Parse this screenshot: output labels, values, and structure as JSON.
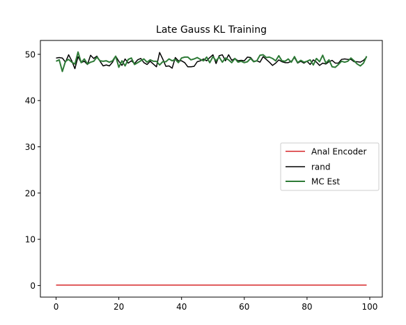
{
  "chart_data": {
    "type": "line",
    "title": "Late Gauss KL Training",
    "xlabel": "",
    "ylabel": "",
    "xlim": [
      -5,
      104
    ],
    "ylim": [
      -2.5,
      53
    ],
    "xticks": [
      0,
      20,
      40,
      60,
      80,
      100
    ],
    "yticks": [
      0,
      10,
      20,
      30,
      40,
      50
    ],
    "grid": false,
    "legend": "center-right",
    "series": [
      {
        "name": "Anal Encoder",
        "color": "#d62728",
        "x": [
          0,
          10,
          20,
          30,
          40,
          50,
          60,
          70,
          80,
          90,
          99
        ],
        "y": [
          0.1,
          0.1,
          0.1,
          0.1,
          0.1,
          0.1,
          0.1,
          0.1,
          0.1,
          0.1,
          0.1
        ]
      },
      {
        "name": "rand",
        "color": "#000000",
        "x": [
          0,
          1,
          2,
          3,
          4,
          5,
          6,
          7,
          8,
          9,
          10,
          11,
          12,
          13,
          14,
          15,
          16,
          17,
          18,
          19,
          20,
          21,
          22,
          23,
          24,
          25,
          26,
          27,
          28,
          29,
          30,
          31,
          32,
          33,
          34,
          35,
          36,
          37,
          38,
          39,
          40,
          41,
          42,
          43,
          44,
          45,
          46,
          47,
          48,
          49,
          50,
          51,
          52,
          53,
          54,
          55,
          56,
          57,
          58,
          59,
          60,
          61,
          62,
          63,
          64,
          65,
          66,
          67,
          68,
          69,
          70,
          71,
          72,
          73,
          74,
          75,
          76,
          77,
          78,
          79,
          80,
          81,
          82,
          83,
          84,
          85,
          86,
          87,
          88,
          89,
          90,
          91,
          92,
          93,
          94,
          95,
          96,
          97,
          98,
          99
        ],
        "y": [
          49.2,
          49.3,
          49.2,
          48.3,
          49.9,
          48.6,
          46.9,
          49.5,
          48.2,
          48.5,
          47.8,
          49.8,
          49.1,
          49.6,
          48.5,
          47.5,
          47.7,
          47.5,
          48.3,
          49.6,
          48.5,
          47.6,
          49.0,
          48.1,
          48.6,
          48.0,
          48.8,
          49.1,
          48.2,
          47.8,
          48.5,
          47.9,
          47.3,
          50.4,
          49.0,
          47.4,
          47.5,
          47.0,
          49.3,
          48.6,
          48.6,
          48.2,
          47.3,
          47.3,
          47.4,
          48.4,
          48.6,
          49.0,
          48.6,
          49.3,
          49.9,
          48.0,
          49.7,
          49.9,
          48.6,
          49.9,
          48.7,
          49.1,
          48.6,
          48.7,
          48.6,
          49.4,
          49.3,
          48.5,
          48.6,
          48.3,
          49.5,
          48.9,
          48.3,
          47.6,
          48.1,
          48.8,
          48.4,
          48.2,
          48.2,
          48.5,
          49.3,
          48.1,
          48.5,
          48.1,
          48.5,
          47.8,
          48.8,
          48.3,
          47.6,
          48.1,
          47.9,
          48.4,
          48.7,
          48.1,
          48.1,
          48.9,
          49.0,
          48.9,
          48.9,
          48.4,
          48.4,
          48.3,
          48.7,
          49.4
        ]
      },
      {
        "name": "MC Est",
        "color": "#2d7a36",
        "x": [
          0,
          1,
          2,
          3,
          4,
          5,
          6,
          7,
          8,
          9,
          10,
          11,
          12,
          13,
          14,
          15,
          16,
          17,
          18,
          19,
          20,
          21,
          22,
          23,
          24,
          25,
          26,
          27,
          28,
          29,
          30,
          31,
          32,
          33,
          34,
          35,
          36,
          37,
          38,
          39,
          40,
          41,
          42,
          43,
          44,
          45,
          46,
          47,
          48,
          49,
          50,
          51,
          52,
          53,
          54,
          55,
          56,
          57,
          58,
          59,
          60,
          61,
          62,
          63,
          64,
          65,
          66,
          67,
          68,
          69,
          70,
          71,
          72,
          73,
          74,
          75,
          76,
          77,
          78,
          79,
          80,
          81,
          82,
          83,
          84,
          85,
          86,
          87,
          88,
          89,
          90,
          91,
          92,
          93,
          94,
          95,
          96,
          97,
          98,
          99
        ],
        "y": [
          48.5,
          48.8,
          46.3,
          48.5,
          48.9,
          48.3,
          47.9,
          50.5,
          48.2,
          49.0,
          47.9,
          48.3,
          48.5,
          49.4,
          48.6,
          48.5,
          48.6,
          48.3,
          48.6,
          49.6,
          47.2,
          48.6,
          47.5,
          48.9,
          49.2,
          47.8,
          48.2,
          48.6,
          49.0,
          48.3,
          48.8,
          48.5,
          48.5,
          47.7,
          48.4,
          48.4,
          49.0,
          48.6,
          48.9,
          48.2,
          49.2,
          49.4,
          49.4,
          48.8,
          49.0,
          49.3,
          48.9,
          48.6,
          49.4,
          48.2,
          49.5,
          48.6,
          49.4,
          48.3,
          49.2,
          48.8,
          48.2,
          49.1,
          48.3,
          48.5,
          48.2,
          48.4,
          49.1,
          48.4,
          48.6,
          49.8,
          49.9,
          49.3,
          49.4,
          49.1,
          48.6,
          49.7,
          48.6,
          48.5,
          49.0,
          48.3,
          49.5,
          48.2,
          48.7,
          48.3,
          48.5,
          48.8,
          47.7,
          49.1,
          48.4,
          49.8,
          48.1,
          48.8,
          47.3,
          47.2,
          47.8,
          48.5,
          48.3,
          48.5,
          49.2,
          48.6,
          47.9,
          47.5,
          48.1,
          49.6
        ]
      }
    ]
  }
}
